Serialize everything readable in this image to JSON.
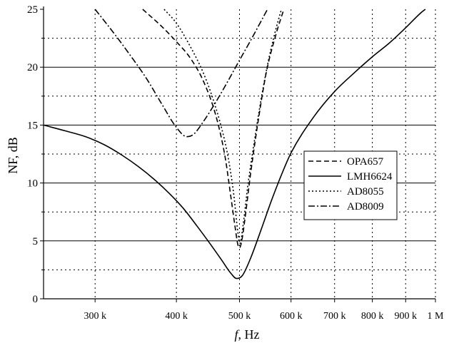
{
  "chart_data": {
    "type": "line",
    "x_scale": "log",
    "xlim": [
      250000,
      1000000
    ],
    "ylim": [
      0,
      25
    ],
    "xlabel_italic": "f",
    "xlabel_rest": ", Hz",
    "ylabel": "NF, dB",
    "grid": true,
    "legend_position": "center-right",
    "x_ticks": [
      {
        "value": 300000,
        "label": "300 k"
      },
      {
        "value": 400000,
        "label": "400 k"
      },
      {
        "value": 500000,
        "label": "500 k"
      },
      {
        "value": 600000,
        "label": "600 k"
      },
      {
        "value": 700000,
        "label": "700 k"
      },
      {
        "value": 800000,
        "label": "800 k"
      },
      {
        "value": 900000,
        "label": "900 k"
      },
      {
        "value": 1000000,
        "label": "1 M"
      }
    ],
    "y_ticks": [
      {
        "value": 0,
        "label": "0"
      },
      {
        "value": 5,
        "label": "5"
      },
      {
        "value": 10,
        "label": "10"
      },
      {
        "value": 15,
        "label": "15"
      },
      {
        "value": 20,
        "label": "20"
      },
      {
        "value": 25,
        "label": "25"
      }
    ],
    "series": [
      {
        "name": "OPA657",
        "dash": "7,4",
        "points": [
          [
            355000,
            25
          ],
          [
            380000,
            23.5
          ],
          [
            400000,
            22.2
          ],
          [
            420000,
            20.8
          ],
          [
            440000,
            18.8
          ],
          [
            460000,
            15.8
          ],
          [
            475000,
            12.3
          ],
          [
            485000,
            8.8
          ],
          [
            492000,
            6.3
          ],
          [
            497000,
            4.7
          ],
          [
            500000,
            4.4
          ],
          [
            504000,
            5.0
          ],
          [
            510000,
            7.0
          ],
          [
            520000,
            10.8
          ],
          [
            535000,
            15.6
          ],
          [
            550000,
            19.6
          ],
          [
            570000,
            23.0
          ],
          [
            585000,
            25
          ]
        ]
      },
      {
        "name": "LMH6624",
        "dash": "",
        "points": [
          [
            250000,
            15.0
          ],
          [
            270000,
            14.5
          ],
          [
            290000,
            14.0
          ],
          [
            310000,
            13.3
          ],
          [
            330000,
            12.4
          ],
          [
            350000,
            11.4
          ],
          [
            370000,
            10.3
          ],
          [
            390000,
            9.1
          ],
          [
            410000,
            7.8
          ],
          [
            430000,
            6.3
          ],
          [
            450000,
            4.8
          ],
          [
            470000,
            3.3
          ],
          [
            485000,
            2.2
          ],
          [
            495000,
            1.75
          ],
          [
            505000,
            2.0
          ],
          [
            520000,
            3.5
          ],
          [
            540000,
            6.0
          ],
          [
            560000,
            8.5
          ],
          [
            580000,
            10.7
          ],
          [
            600000,
            12.6
          ],
          [
            650000,
            15.7
          ],
          [
            700000,
            17.9
          ],
          [
            750000,
            19.5
          ],
          [
            800000,
            20.9
          ],
          [
            850000,
            22.1
          ],
          [
            900000,
            23.4
          ],
          [
            950000,
            24.7
          ],
          [
            965000,
            25
          ]
        ]
      },
      {
        "name": "AD8055",
        "dash": "2,3",
        "points": [
          [
            383000,
            25
          ],
          [
            400000,
            23.8
          ],
          [
            420000,
            21.8
          ],
          [
            440000,
            19.5
          ],
          [
            455000,
            17.3
          ],
          [
            470000,
            14.6
          ],
          [
            480000,
            12.3
          ],
          [
            490000,
            9.0
          ],
          [
            497000,
            5.8
          ],
          [
            501000,
            4.8
          ],
          [
            506000,
            6.2
          ],
          [
            515000,
            9.8
          ],
          [
            525000,
            13.0
          ],
          [
            540000,
            17.3
          ],
          [
            555000,
            20.8
          ],
          [
            570000,
            23.5
          ],
          [
            580000,
            25
          ]
        ]
      },
      {
        "name": "AD8009",
        "dash": "9,3,2,3",
        "points": [
          [
            300000,
            25
          ],
          [
            320000,
            23.0
          ],
          [
            340000,
            21.0
          ],
          [
            360000,
            19.0
          ],
          [
            380000,
            16.8
          ],
          [
            400000,
            14.8
          ],
          [
            415000,
            14.0
          ],
          [
            425000,
            14.2
          ],
          [
            440000,
            15.3
          ],
          [
            460000,
            17.0
          ],
          [
            480000,
            18.8
          ],
          [
            500000,
            20.6
          ],
          [
            520000,
            22.3
          ],
          [
            540000,
            24.0
          ],
          [
            552000,
            25
          ]
        ]
      }
    ]
  }
}
